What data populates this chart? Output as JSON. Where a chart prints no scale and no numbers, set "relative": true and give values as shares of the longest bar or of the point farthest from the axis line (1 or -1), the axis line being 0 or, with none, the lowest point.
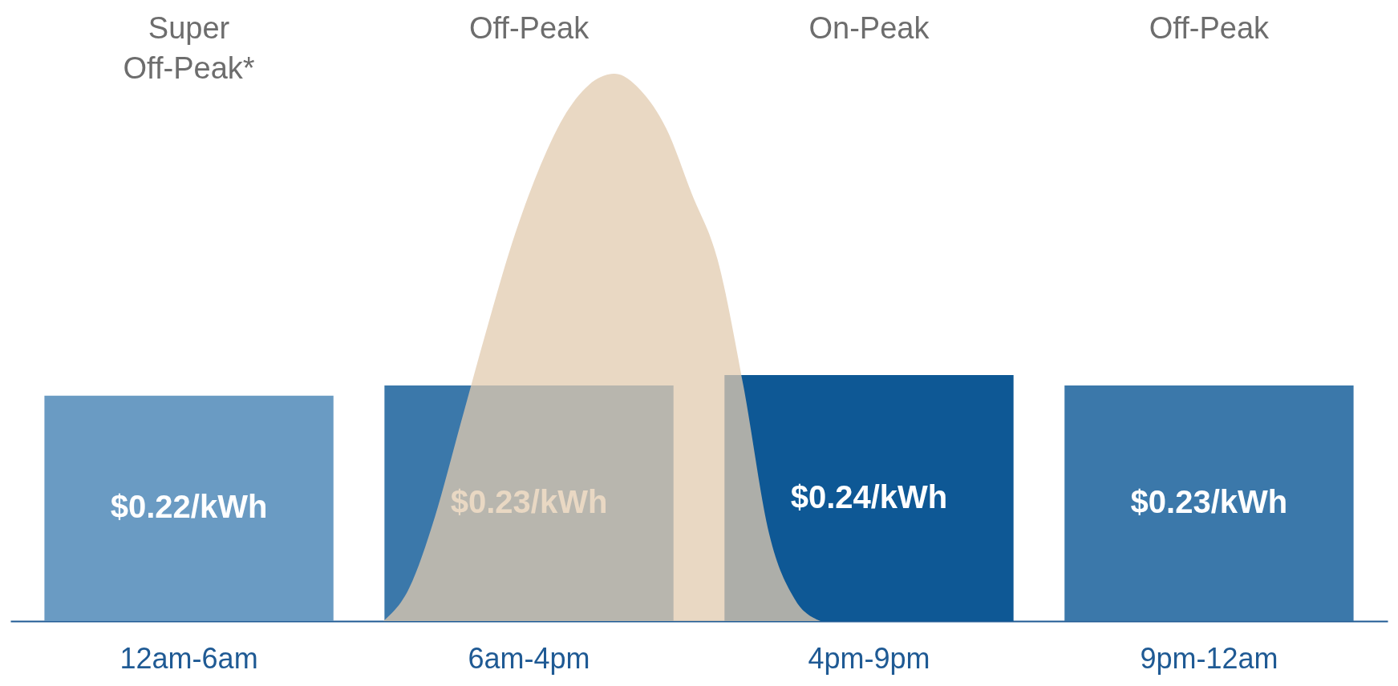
{
  "chart_data": [
    {
      "type": "bar",
      "categories": [
        "12am-6am",
        "6am-4pm",
        "4pm-9pm",
        "9pm-12am"
      ],
      "series": [
        {
          "values": [
            0.22,
            0.23,
            0.24,
            0.23
          ],
          "colors": [
            "#6a9bc3",
            "#3b78aa",
            "#0e5895",
            "#3b78aa"
          ],
          "value_labels": [
            "$0.22/kWh",
            "$0.23/kWh",
            "$0.24/kWh",
            "$0.23/kWh"
          ]
        }
      ],
      "annotations": [
        "Super Off-Peak*",
        "Off-Peak",
        "On-Peak",
        "Off-Peak"
      ]
    },
    {
      "type": "area",
      "relative": true,
      "categories": [
        null,
        null,
        null,
        null,
        null,
        null,
        null,
        null,
        null,
        null,
        null,
        null,
        null,
        null,
        null,
        null,
        null,
        null
      ],
      "series": [
        {
          "color": "#e2cbb0",
          "values": [
            0,
            0.06,
            0.19,
            0.36,
            0.53,
            0.69,
            0.82,
            0.92,
            0.98,
            1,
            0.97,
            0.9,
            0.78,
            0.66,
            0.43,
            0.16,
            0.04,
            0
          ]
        }
      ]
    }
  ]
}
